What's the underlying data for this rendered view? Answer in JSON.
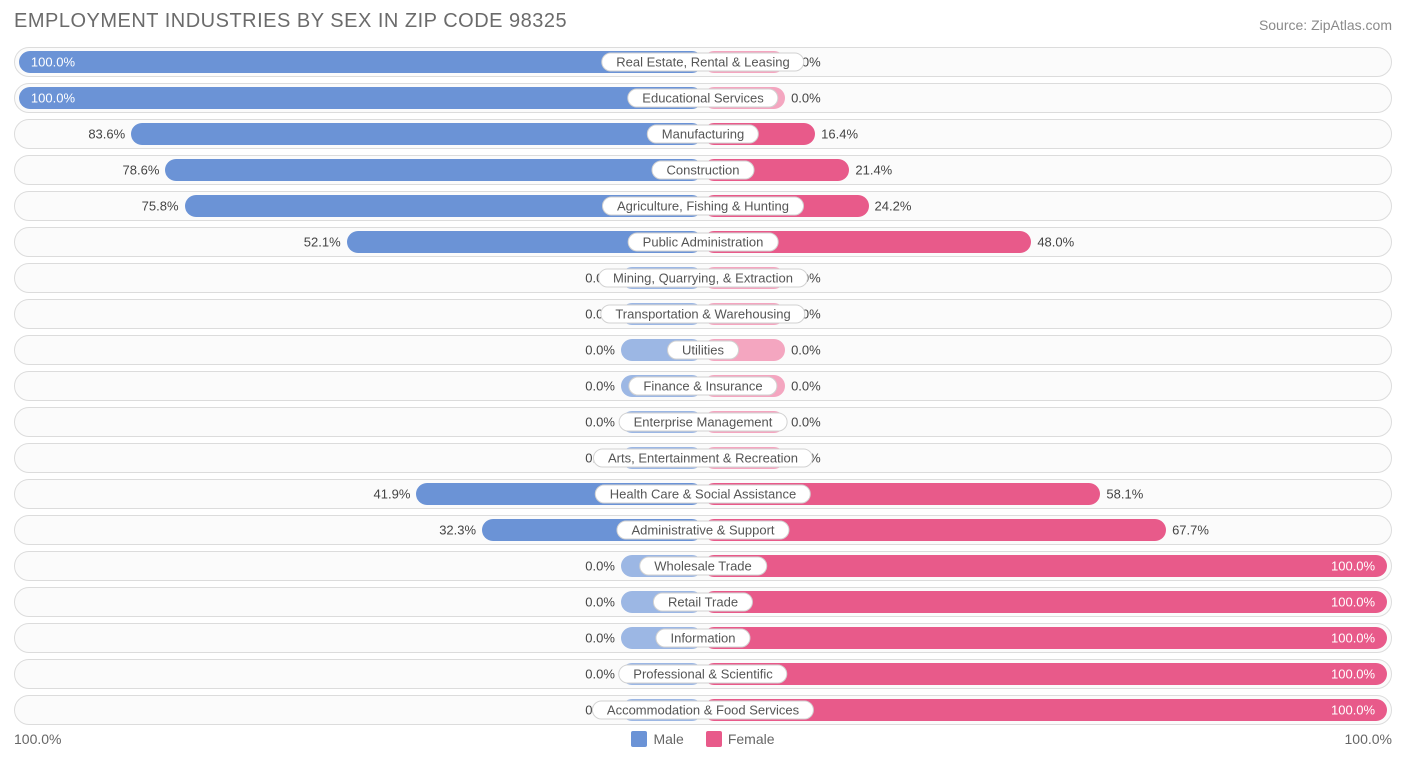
{
  "title": "EMPLOYMENT INDUSTRIES BY SEX IN ZIP CODE 98325",
  "source": "Source: ZipAtlas.com",
  "axis": {
    "left": "100.0%",
    "right": "100.0%"
  },
  "colors": {
    "male": "#6b93d6",
    "male_zero": "#9cb7e4",
    "female": "#e85a8a",
    "female_zero": "#f4a6c0",
    "row_border": "#dcdcdc",
    "row_bg": "#fbfbfb",
    "text": "#555555",
    "background": "#ffffff"
  },
  "zero_bar_pct": 12,
  "legend": [
    {
      "label": "Male",
      "color": "#6b93d6"
    },
    {
      "label": "Female",
      "color": "#e85a8a"
    }
  ],
  "rows": [
    {
      "label": "Real Estate, Rental & Leasing",
      "male": 100.0,
      "female": 0.0
    },
    {
      "label": "Educational Services",
      "male": 100.0,
      "female": 0.0
    },
    {
      "label": "Manufacturing",
      "male": 83.6,
      "female": 16.4
    },
    {
      "label": "Construction",
      "male": 78.6,
      "female": 21.4
    },
    {
      "label": "Agriculture, Fishing & Hunting",
      "male": 75.8,
      "female": 24.2
    },
    {
      "label": "Public Administration",
      "male": 52.1,
      "female": 48.0
    },
    {
      "label": "Mining, Quarrying, & Extraction",
      "male": 0.0,
      "female": 0.0
    },
    {
      "label": "Transportation & Warehousing",
      "male": 0.0,
      "female": 0.0
    },
    {
      "label": "Utilities",
      "male": 0.0,
      "female": 0.0
    },
    {
      "label": "Finance & Insurance",
      "male": 0.0,
      "female": 0.0
    },
    {
      "label": "Enterprise Management",
      "male": 0.0,
      "female": 0.0
    },
    {
      "label": "Arts, Entertainment & Recreation",
      "male": 0.0,
      "female": 0.0
    },
    {
      "label": "Health Care & Social Assistance",
      "male": 41.9,
      "female": 58.1
    },
    {
      "label": "Administrative & Support",
      "male": 32.3,
      "female": 67.7
    },
    {
      "label": "Wholesale Trade",
      "male": 0.0,
      "female": 100.0
    },
    {
      "label": "Retail Trade",
      "male": 0.0,
      "female": 100.0
    },
    {
      "label": "Information",
      "male": 0.0,
      "female": 100.0
    },
    {
      "label": "Professional & Scientific",
      "male": 0.0,
      "female": 100.0
    },
    {
      "label": "Accommodation & Food Services",
      "male": 0.0,
      "female": 100.0
    }
  ]
}
